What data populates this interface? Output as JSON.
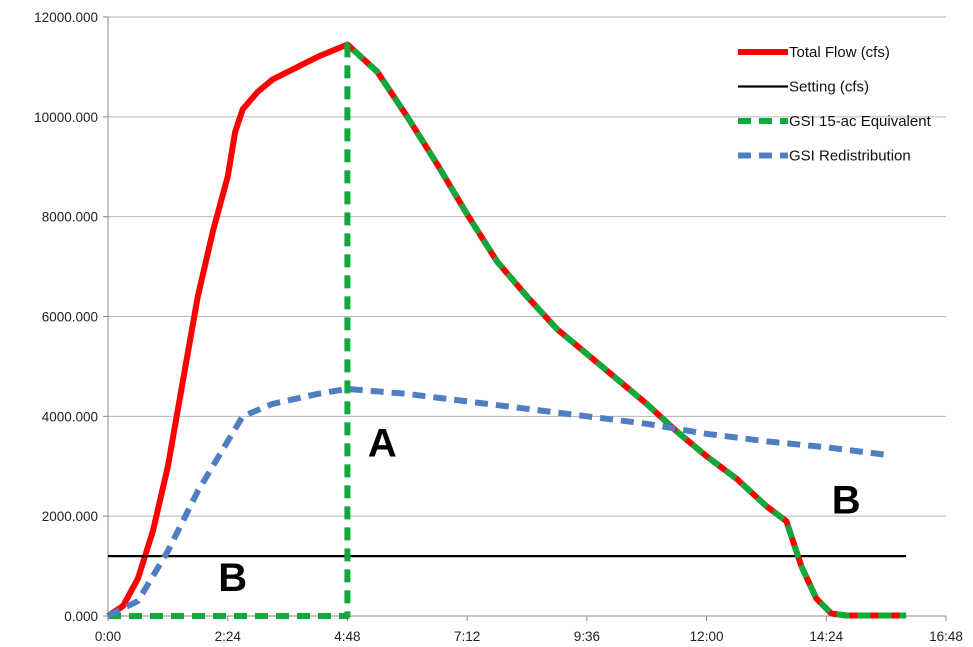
{
  "chart_data": {
    "type": "line",
    "x_unit": "h:mm",
    "xlim": [
      0,
      16.8
    ],
    "ylim": [
      0,
      12000
    ],
    "x_ticks": [
      {
        "value": 0,
        "label": "0:00"
      },
      {
        "value": 2.4,
        "label": "2:24"
      },
      {
        "value": 4.8,
        "label": "4:48"
      },
      {
        "value": 7.2,
        "label": "7:12"
      },
      {
        "value": 9.6,
        "label": "9:36"
      },
      {
        "value": 12.0,
        "label": "12:00"
      },
      {
        "value": 14.4,
        "label": "14:24"
      },
      {
        "value": 16.8,
        "label": "16:48"
      }
    ],
    "y_ticks": [
      {
        "value": 0,
        "label": "0.000"
      },
      {
        "value": 2000,
        "label": "2000.000"
      },
      {
        "value": 4000,
        "label": "4000.000"
      },
      {
        "value": 6000,
        "label": "6000.000"
      },
      {
        "value": 8000,
        "label": "8000.000"
      },
      {
        "value": 10000,
        "label": "10000.000"
      },
      {
        "value": 12000,
        "label": "12000.000"
      }
    ],
    "grid": "horizontal",
    "legend_position": "top-right",
    "series": [
      {
        "name": "Total Flow (cfs)",
        "color": "#ff0000",
        "style": "solid",
        "points": [
          [
            0,
            0
          ],
          [
            0.3,
            200
          ],
          [
            0.6,
            750
          ],
          [
            0.9,
            1700
          ],
          [
            1.2,
            3000
          ],
          [
            1.5,
            4700
          ],
          [
            1.8,
            6400
          ],
          [
            2.1,
            7700
          ],
          [
            2.4,
            8800
          ],
          [
            2.55,
            9700
          ],
          [
            2.7,
            10150
          ],
          [
            3.0,
            10500
          ],
          [
            3.3,
            10750
          ],
          [
            3.6,
            10900
          ],
          [
            4.2,
            11200
          ],
          [
            4.8,
            11450
          ],
          [
            5.4,
            10900
          ],
          [
            6.0,
            10000
          ],
          [
            6.6,
            9050
          ],
          [
            7.2,
            8050
          ],
          [
            7.8,
            7100
          ],
          [
            8.4,
            6400
          ],
          [
            9.0,
            5750
          ],
          [
            9.6,
            5250
          ],
          [
            10.2,
            4750
          ],
          [
            10.8,
            4250
          ],
          [
            11.4,
            3700
          ],
          [
            12.0,
            3200
          ],
          [
            12.6,
            2750
          ],
          [
            13.2,
            2200
          ],
          [
            13.6,
            1900
          ],
          [
            13.9,
            1000
          ],
          [
            14.2,
            350
          ],
          [
            14.5,
            50
          ],
          [
            14.8,
            10
          ],
          [
            16.0,
            10
          ]
        ]
      },
      {
        "name": "Setting (cfs)",
        "color": "#000000",
        "style": "solid",
        "points": [
          [
            0,
            1200
          ],
          [
            16.0,
            1200
          ]
        ]
      },
      {
        "name": "GSI 15-ac Equivalent",
        "color": "#11a83c",
        "style": "dashed",
        "points": [
          [
            0,
            0
          ],
          [
            4.8,
            0
          ],
          [
            4.8,
            11450
          ],
          [
            5.4,
            10900
          ],
          [
            6.0,
            10000
          ],
          [
            6.6,
            9050
          ],
          [
            7.2,
            8050
          ],
          [
            7.8,
            7100
          ],
          [
            8.4,
            6400
          ],
          [
            9.0,
            5750
          ],
          [
            9.6,
            5250
          ],
          [
            10.2,
            4750
          ],
          [
            10.8,
            4250
          ],
          [
            11.4,
            3700
          ],
          [
            12.0,
            3200
          ],
          [
            12.6,
            2750
          ],
          [
            13.2,
            2200
          ],
          [
            13.6,
            1900
          ],
          [
            13.9,
            1000
          ],
          [
            14.2,
            350
          ],
          [
            14.5,
            50
          ],
          [
            14.8,
            10
          ],
          [
            16.0,
            10
          ]
        ]
      },
      {
        "name": "GSI Redistribution",
        "color": "#4f7fc0",
        "style": "dashed",
        "points": [
          [
            0,
            0
          ],
          [
            0.6,
            300
          ],
          [
            1.2,
            1300
          ],
          [
            1.8,
            2500
          ],
          [
            2.4,
            3500
          ],
          [
            2.7,
            4000
          ],
          [
            3.3,
            4250
          ],
          [
            4.2,
            4450
          ],
          [
            4.8,
            4550
          ],
          [
            6.0,
            4450
          ],
          [
            7.2,
            4300
          ],
          [
            8.4,
            4150
          ],
          [
            9.6,
            4000
          ],
          [
            10.8,
            3850
          ],
          [
            12.0,
            3650
          ],
          [
            13.2,
            3500
          ],
          [
            14.4,
            3380
          ],
          [
            15.6,
            3230
          ]
        ]
      }
    ],
    "annotations": [
      {
        "text": "A",
        "x": 5.5,
        "y": 3200
      },
      {
        "text": "B",
        "x": 2.5,
        "y": 500
      },
      {
        "text": "B",
        "x": 14.8,
        "y": 2050
      }
    ]
  }
}
